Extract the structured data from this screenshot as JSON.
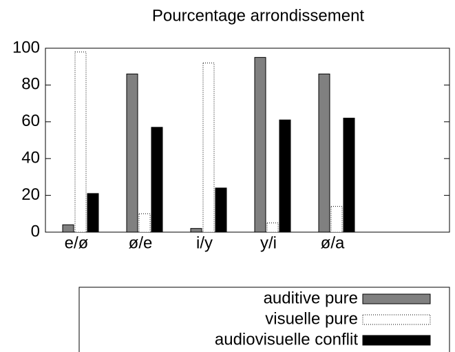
{
  "chart_data": {
    "type": "bar",
    "title": "Pourcentage arrondissement",
    "categories": [
      "e/ø",
      "ø/e",
      "i/y",
      "y/i",
      "ø/a"
    ],
    "series": [
      {
        "name": "auditive pure",
        "color": "#808080",
        "values": [
          4,
          86,
          2,
          95,
          86
        ]
      },
      {
        "name": "visuelle pure",
        "color": "#ffffff",
        "values": [
          98,
          10,
          92,
          5,
          14
        ]
      },
      {
        "name": "audiovisuelle conflit",
        "color": "#000000",
        "values": [
          21,
          57,
          24,
          61,
          62
        ]
      }
    ],
    "ylim": [
      0,
      100
    ],
    "yticks": [
      0,
      20,
      40,
      60,
      80,
      100
    ],
    "grid": false
  }
}
